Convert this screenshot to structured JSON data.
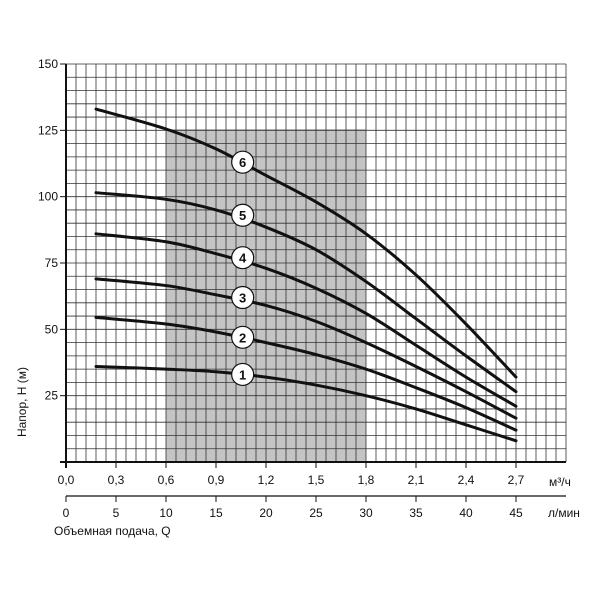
{
  "chart_data": {
    "type": "line",
    "ylabel": "Напор, Н (м)",
    "xlabel": "Объемная подача, Q",
    "x_unit_primary": "м³/ч",
    "x_unit_secondary": "л/мин",
    "xlim": [
      0,
      2.7
    ],
    "ylim": [
      0,
      150
    ],
    "grid": true,
    "x_ticks_primary": [
      "0,0",
      "0,3",
      "0,6",
      "0,9",
      "1,2",
      "1,5",
      "1,8",
      "2,1",
      "2,4",
      "2,7"
    ],
    "x_ticks_secondary": [
      "0",
      "5",
      "10",
      "15",
      "20",
      "25",
      "30",
      "35",
      "40",
      "45"
    ],
    "y_ticks": [
      "25",
      "50",
      "75",
      "100",
      "125",
      "150"
    ],
    "shaded_range_x": [
      0.6,
      1.8
    ],
    "series": [
      {
        "name": "1",
        "label_x": 1.06,
        "label_y": 33,
        "x": [
          0.18,
          0.6,
          0.9,
          1.2,
          1.5,
          1.8,
          2.1,
          2.4,
          2.7
        ],
        "values": [
          36,
          35,
          34,
          32,
          29,
          25,
          20,
          14,
          8
        ]
      },
      {
        "name": "2",
        "label_x": 1.06,
        "label_y": 47,
        "x": [
          0.18,
          0.6,
          0.9,
          1.2,
          1.5,
          1.8,
          2.1,
          2.4,
          2.7
        ],
        "values": [
          54.5,
          52,
          49,
          45,
          40.5,
          35,
          28,
          20.5,
          12
        ]
      },
      {
        "name": "3",
        "label_x": 1.06,
        "label_y": 62,
        "x": [
          0.18,
          0.6,
          0.9,
          1.2,
          1.5,
          1.8,
          2.1,
          2.4,
          2.7
        ],
        "values": [
          69,
          66.5,
          63,
          59,
          53,
          45,
          36,
          26.5,
          16.5
        ]
      },
      {
        "name": "4",
        "label_x": 1.06,
        "label_y": 77,
        "x": [
          0.18,
          0.6,
          0.9,
          1.2,
          1.5,
          1.8,
          2.1,
          2.4,
          2.7
        ],
        "values": [
          86,
          83,
          78.5,
          73,
          65.5,
          56,
          44,
          32,
          21
        ]
      },
      {
        "name": "5",
        "label_x": 1.06,
        "label_y": 93,
        "x": [
          0.18,
          0.6,
          0.9,
          1.2,
          1.5,
          1.8,
          2.1,
          2.4,
          2.7
        ],
        "values": [
          101.5,
          99,
          95,
          88.5,
          80,
          68,
          54,
          40,
          26.5
        ]
      },
      {
        "name": "6",
        "label_x": 1.06,
        "label_y": 113,
        "x": [
          0.18,
          0.6,
          0.9,
          1.2,
          1.5,
          1.8,
          2.1,
          2.4,
          2.7
        ],
        "values": [
          133,
          125.5,
          118,
          108,
          98,
          86,
          70.5,
          52,
          32
        ]
      }
    ]
  }
}
